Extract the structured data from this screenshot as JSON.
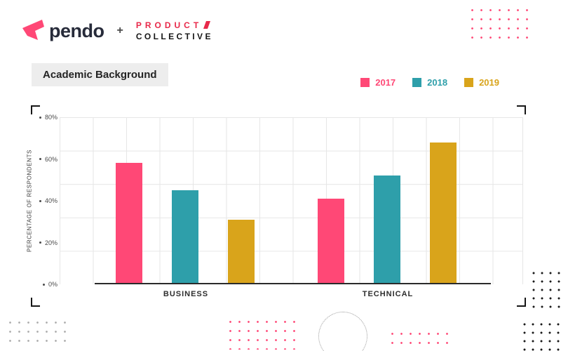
{
  "header": {
    "pendo_wordmark": "pendo",
    "plus": "+",
    "product_collective_line1": "PRODUCT",
    "product_collective_line2": "COLLECTIVE"
  },
  "section_title": "Academic Background",
  "chart_data": {
    "type": "bar",
    "title": "Academic Background",
    "categories": [
      "BUSINESS",
      "TECHNICAL"
    ],
    "series": [
      {
        "name": "2017",
        "color": "#FF4876",
        "values": [
          58,
          41
        ]
      },
      {
        "name": "2018",
        "color": "#2E9FAA",
        "values": [
          45,
          52
        ]
      },
      {
        "name": "2019",
        "color": "#D9A41B",
        "values": [
          31,
          68
        ]
      }
    ],
    "ylabel": "PERCENTAGE OF RESPONDENTS",
    "xlabel": "",
    "ylim": [
      0,
      80
    ],
    "yticks": [
      0,
      20,
      40,
      60,
      80
    ],
    "ytick_labels": [
      "0%",
      "20%",
      "40%",
      "60%",
      "80%"
    ],
    "grid": true,
    "legend_position": "top-right"
  }
}
